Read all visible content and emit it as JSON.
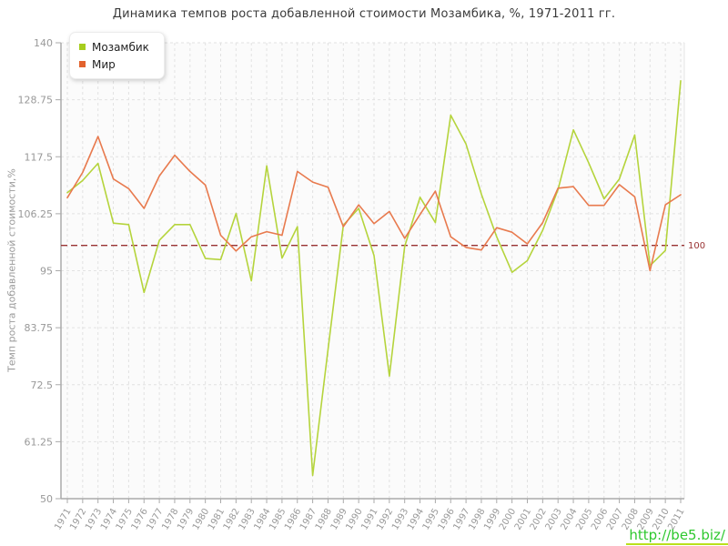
{
  "page": {
    "title": "Динамика темпов роста добавленной стоимости Мозамбика, %, 1971-2011 гг.",
    "watermark": "http://be5.biz/"
  },
  "chart_data": {
    "type": "line",
    "title": "Динамика темпов роста добавленной стоимости Мозамбика, %, 1971-2011 гг.",
    "xlabel": "",
    "ylabel": "Темп роста добавленной стоимости,%",
    "ylim": [
      50,
      140
    ],
    "yticks": [
      140,
      128.75,
      117.5,
      106.25,
      95,
      83.75,
      72.5,
      61.25,
      50
    ],
    "grid": true,
    "legend_position": "top-left",
    "x": [
      1971,
      1972,
      1973,
      1974,
      1975,
      1976,
      1977,
      1978,
      1979,
      1980,
      1981,
      1982,
      1983,
      1984,
      1985,
      1986,
      1987,
      1988,
      1989,
      1990,
      1991,
      1992,
      1993,
      1994,
      1995,
      1996,
      1997,
      1998,
      1999,
      2000,
      2001,
      2002,
      2003,
      2004,
      2005,
      2006,
      2007,
      2008,
      2009,
      2010,
      2011
    ],
    "series": [
      {
        "name": "Мозамбик",
        "color": "#b5d43c",
        "swatch_color": "#a6cd1d",
        "values": [
          110.4,
          112.8,
          116.2,
          104.4,
          104.1,
          90.7,
          101.0,
          104.1,
          104.1,
          97.4,
          97.2,
          106.3,
          93.0,
          115.7,
          97.5,
          103.7,
          54.6,
          79.5,
          104.0,
          107.3,
          98.0,
          74.2,
          99.8,
          109.5,
          104.5,
          125.7,
          120.0,
          110.1,
          101.7,
          94.7,
          97.0,
          103.0,
          111.0,
          122.8,
          116.3,
          109.2,
          113.1,
          121.8,
          96.0,
          99.0,
          132.5
        ]
      },
      {
        "name": "Мир",
        "color": "#e87a4e",
        "swatch_color": "#e2622d",
        "values": [
          109.4,
          114.4,
          121.5,
          113.1,
          111.2,
          107.3,
          113.7,
          117.8,
          114.6,
          111.9,
          102.0,
          98.9,
          101.7,
          102.7,
          102.0,
          114.6,
          112.5,
          111.5,
          103.7,
          108.0,
          104.3,
          106.7,
          101.4,
          106.1,
          110.7,
          101.7,
          99.6,
          99.1,
          103.5,
          102.6,
          100.3,
          104.5,
          111.3,
          111.6,
          107.9,
          107.9,
          112.0,
          109.6,
          95.0,
          108.0,
          110.0
        ]
      }
    ],
    "ref_line": {
      "value": 100,
      "label": "100",
      "color": "#993333"
    }
  },
  "colors": {
    "plot_background": "#fbfbfb",
    "gridline": "#e2e2e2",
    "axis": "#aaaaaa",
    "tick_text": "#999999",
    "title_text": "#3a3a3a",
    "ref_line": "#993333",
    "watermark_green": "#2ec82e"
  }
}
